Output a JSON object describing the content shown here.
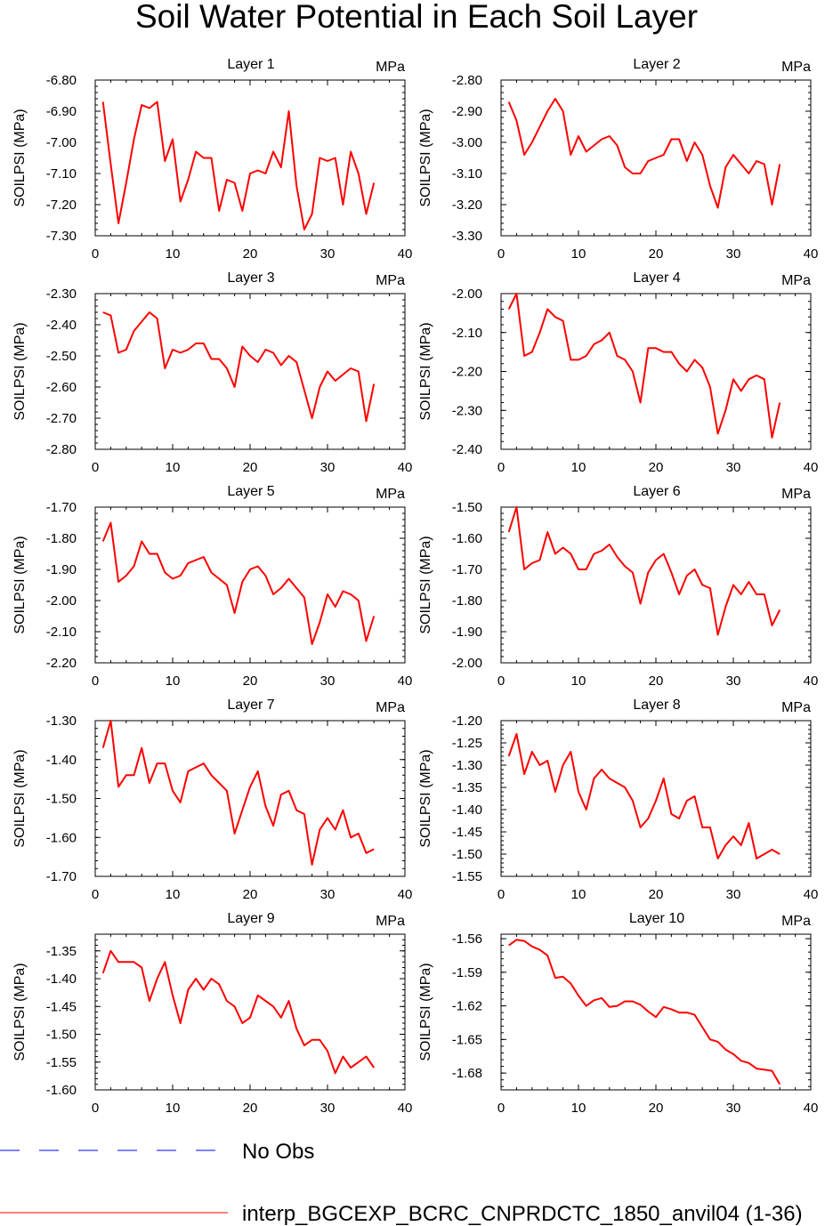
{
  "title": "Soil Water Potential in Each Soil Layer",
  "colors": {
    "model": "#ff0000",
    "obs": "#0000ff",
    "axis": "#000000"
  },
  "legend": [
    {
      "label": "No Obs",
      "style": "dashed",
      "color": "#0000ff"
    },
    {
      "label": "interp_BGCEXP_BCRC_CNPRDCTC_1850_anvil04 (1-36)",
      "style": "solid",
      "color": "#ff0000"
    }
  ],
  "chart_data": [
    {
      "type": "line",
      "title": "Layer 1",
      "units": "MPa",
      "ylabel": "SOILPSI  (MPa)",
      "xlim": [
        0,
        40
      ],
      "xticks": [
        "0",
        "10",
        "20",
        "30",
        "40"
      ],
      "ylim": [
        -7.3,
        -6.8
      ],
      "yticks": [
        "-6.80",
        "-6.90",
        "-7.00",
        "-7.10",
        "-7.20",
        "-7.30"
      ],
      "x": [
        1,
        2,
        3,
        4,
        5,
        6,
        7,
        8,
        9,
        10,
        11,
        12,
        13,
        14,
        15,
        16,
        17,
        18,
        19,
        20,
        21,
        22,
        23,
        24,
        25,
        26,
        27,
        28,
        29,
        30,
        31,
        32,
        33,
        34,
        35,
        36
      ],
      "series": [
        {
          "values": [
            -6.87,
            -7.07,
            -7.26,
            -7.13,
            -6.99,
            -6.88,
            -6.89,
            -6.87,
            -7.06,
            -6.99,
            -7.19,
            -7.12,
            -7.03,
            -7.05,
            -7.05,
            -7.22,
            -7.12,
            -7.13,
            -7.22,
            -7.1,
            -7.09,
            -7.1,
            -7.03,
            -7.08,
            -6.9,
            -7.14,
            -7.28,
            -7.23,
            -7.05,
            -7.06,
            -7.05,
            -7.2,
            -7.03,
            -7.1,
            -7.23,
            -7.13
          ]
        }
      ]
    },
    {
      "type": "line",
      "title": "Layer 2",
      "units": "MPa",
      "ylabel": "SOILPSI  (MPa)",
      "xlim": [
        0,
        40
      ],
      "xticks": [
        "0",
        "10",
        "20",
        "30",
        "40"
      ],
      "ylim": [
        -3.3,
        -2.8
      ],
      "yticks": [
        "-2.80",
        "-2.90",
        "-3.00",
        "-3.10",
        "-3.20",
        "-3.30"
      ],
      "x": [
        1,
        2,
        3,
        4,
        5,
        6,
        7,
        8,
        9,
        10,
        11,
        12,
        13,
        14,
        15,
        16,
        17,
        18,
        19,
        20,
        21,
        22,
        23,
        24,
        25,
        26,
        27,
        28,
        29,
        30,
        31,
        32,
        33,
        34,
        35,
        36
      ],
      "series": [
        {
          "values": [
            -2.87,
            -2.93,
            -3.04,
            -3.0,
            -2.95,
            -2.9,
            -2.86,
            -2.9,
            -3.04,
            -2.98,
            -3.03,
            -3.01,
            -2.99,
            -2.98,
            -3.01,
            -3.08,
            -3.1,
            -3.1,
            -3.06,
            -3.05,
            -3.04,
            -2.99,
            -2.99,
            -3.06,
            -3.0,
            -3.04,
            -3.14,
            -3.21,
            -3.08,
            -3.04,
            -3.07,
            -3.1,
            -3.06,
            -3.07,
            -3.2,
            -3.07
          ]
        }
      ]
    },
    {
      "type": "line",
      "title": "Layer 3",
      "units": "MPa",
      "ylabel": "SOILPSI  (MPa)",
      "xlim": [
        0,
        40
      ],
      "xticks": [
        "0",
        "10",
        "20",
        "30",
        "40"
      ],
      "ylim": [
        -2.8,
        -2.3
      ],
      "yticks": [
        "-2.30",
        "-2.40",
        "-2.50",
        "-2.60",
        "-2.70",
        "-2.80"
      ],
      "x": [
        1,
        2,
        3,
        4,
        5,
        6,
        7,
        8,
        9,
        10,
        11,
        12,
        13,
        14,
        15,
        16,
        17,
        18,
        19,
        20,
        21,
        22,
        23,
        24,
        25,
        26,
        27,
        28,
        29,
        30,
        31,
        32,
        33,
        34,
        35,
        36
      ],
      "series": [
        {
          "values": [
            -2.36,
            -2.37,
            -2.49,
            -2.48,
            -2.42,
            -2.39,
            -2.36,
            -2.38,
            -2.54,
            -2.48,
            -2.49,
            -2.48,
            -2.46,
            -2.46,
            -2.51,
            -2.51,
            -2.54,
            -2.6,
            -2.47,
            -2.5,
            -2.52,
            -2.48,
            -2.49,
            -2.53,
            -2.5,
            -2.52,
            -2.61,
            -2.7,
            -2.6,
            -2.55,
            -2.58,
            -2.56,
            -2.54,
            -2.55,
            -2.71,
            -2.59
          ]
        }
      ]
    },
    {
      "type": "line",
      "title": "Layer 4",
      "units": "MPa",
      "ylabel": "SOILPSI  (MPa)",
      "xlim": [
        0,
        40
      ],
      "xticks": [
        "0",
        "10",
        "20",
        "30",
        "40"
      ],
      "ylim": [
        -2.4,
        -2.0
      ],
      "yticks": [
        "-2.00",
        "-2.10",
        "-2.20",
        "-2.30",
        "-2.40"
      ],
      "x": [
        1,
        2,
        3,
        4,
        5,
        6,
        7,
        8,
        9,
        10,
        11,
        12,
        13,
        14,
        15,
        16,
        17,
        18,
        19,
        20,
        21,
        22,
        23,
        24,
        25,
        26,
        27,
        28,
        29,
        30,
        31,
        32,
        33,
        34,
        35,
        36
      ],
      "series": [
        {
          "values": [
            -2.04,
            -2.0,
            -2.16,
            -2.15,
            -2.1,
            -2.04,
            -2.06,
            -2.07,
            -2.17,
            -2.17,
            -2.16,
            -2.13,
            -2.12,
            -2.1,
            -2.16,
            -2.17,
            -2.2,
            -2.28,
            -2.14,
            -2.14,
            -2.15,
            -2.15,
            -2.18,
            -2.2,
            -2.17,
            -2.19,
            -2.24,
            -2.36,
            -2.3,
            -2.22,
            -2.25,
            -2.22,
            -2.21,
            -2.22,
            -2.37,
            -2.28
          ]
        }
      ]
    },
    {
      "type": "line",
      "title": "Layer 5",
      "units": "MPa",
      "ylabel": "SOILPSI  (MPa)",
      "xlim": [
        0,
        40
      ],
      "xticks": [
        "0",
        "10",
        "20",
        "30",
        "40"
      ],
      "ylim": [
        -2.2,
        -1.7
      ],
      "yticks": [
        "-1.70",
        "-1.80",
        "-1.90",
        "-2.00",
        "-2.10",
        "-2.20"
      ],
      "x": [
        1,
        2,
        3,
        4,
        5,
        6,
        7,
        8,
        9,
        10,
        11,
        12,
        13,
        14,
        15,
        16,
        17,
        18,
        19,
        20,
        21,
        22,
        23,
        24,
        25,
        26,
        27,
        28,
        29,
        30,
        31,
        32,
        33,
        34,
        35,
        36
      ],
      "series": [
        {
          "values": [
            -1.81,
            -1.75,
            -1.94,
            -1.92,
            -1.89,
            -1.81,
            -1.85,
            -1.85,
            -1.91,
            -1.93,
            -1.92,
            -1.88,
            -1.87,
            -1.86,
            -1.91,
            -1.93,
            -1.95,
            -2.04,
            -1.94,
            -1.9,
            -1.89,
            -1.92,
            -1.98,
            -1.96,
            -1.93,
            -1.96,
            -1.99,
            -2.14,
            -2.07,
            -1.98,
            -2.02,
            -1.97,
            -1.98,
            -2.0,
            -2.13,
            -2.05
          ]
        }
      ]
    },
    {
      "type": "line",
      "title": "Layer 6",
      "units": "MPa",
      "ylabel": "SOILPSI  (MPa)",
      "xlim": [
        0,
        40
      ],
      "xticks": [
        "0",
        "10",
        "20",
        "30",
        "40"
      ],
      "ylim": [
        -2.0,
        -1.5
      ],
      "yticks": [
        "-1.50",
        "-1.60",
        "-1.70",
        "-1.80",
        "-1.90",
        "-2.00"
      ],
      "x": [
        1,
        2,
        3,
        4,
        5,
        6,
        7,
        8,
        9,
        10,
        11,
        12,
        13,
        14,
        15,
        16,
        17,
        18,
        19,
        20,
        21,
        22,
        23,
        24,
        25,
        26,
        27,
        28,
        29,
        30,
        31,
        32,
        33,
        34,
        35,
        36
      ],
      "series": [
        {
          "values": [
            -1.58,
            -1.5,
            -1.7,
            -1.68,
            -1.67,
            -1.58,
            -1.65,
            -1.63,
            -1.65,
            -1.7,
            -1.7,
            -1.65,
            -1.64,
            -1.62,
            -1.66,
            -1.69,
            -1.71,
            -1.81,
            -1.71,
            -1.67,
            -1.65,
            -1.71,
            -1.78,
            -1.72,
            -1.7,
            -1.75,
            -1.76,
            -1.91,
            -1.82,
            -1.75,
            -1.78,
            -1.74,
            -1.78,
            -1.78,
            -1.88,
            -1.83
          ]
        }
      ]
    },
    {
      "type": "line",
      "title": "Layer 7",
      "units": "MPa",
      "ylabel": "SOILPSI  (MPa)",
      "xlim": [
        0,
        40
      ],
      "xticks": [
        "0",
        "10",
        "20",
        "30",
        "40"
      ],
      "ylim": [
        -1.7,
        -1.3
      ],
      "yticks": [
        "-1.30",
        "-1.40",
        "-1.50",
        "-1.60",
        "-1.70"
      ],
      "x": [
        1,
        2,
        3,
        4,
        5,
        6,
        7,
        8,
        9,
        10,
        11,
        12,
        13,
        14,
        15,
        16,
        17,
        18,
        19,
        20,
        21,
        22,
        23,
        24,
        25,
        26,
        27,
        28,
        29,
        30,
        31,
        32,
        33,
        34,
        35,
        36
      ],
      "series": [
        {
          "values": [
            -1.37,
            -1.3,
            -1.47,
            -1.44,
            -1.44,
            -1.37,
            -1.46,
            -1.41,
            -1.41,
            -1.48,
            -1.51,
            -1.43,
            -1.42,
            -1.41,
            -1.44,
            -1.46,
            -1.48,
            -1.59,
            -1.53,
            -1.47,
            -1.43,
            -1.52,
            -1.57,
            -1.49,
            -1.48,
            -1.53,
            -1.54,
            -1.67,
            -1.58,
            -1.55,
            -1.58,
            -1.53,
            -1.6,
            -1.59,
            -1.64,
            -1.63
          ]
        }
      ]
    },
    {
      "type": "line",
      "title": "Layer 8",
      "units": "MPa",
      "ylabel": "SOILPSI  (MPa)",
      "xlim": [
        0,
        40
      ],
      "xticks": [
        "0",
        "10",
        "20",
        "30",
        "40"
      ],
      "ylim": [
        -1.55,
        -1.2
      ],
      "yticks": [
        "-1.20",
        "-1.25",
        "-1.30",
        "-1.35",
        "-1.40",
        "-1.45",
        "-1.50",
        "-1.55"
      ],
      "x": [
        1,
        2,
        3,
        4,
        5,
        6,
        7,
        8,
        9,
        10,
        11,
        12,
        13,
        14,
        15,
        16,
        17,
        18,
        19,
        20,
        21,
        22,
        23,
        24,
        25,
        26,
        27,
        28,
        29,
        30,
        31,
        32,
        33,
        34,
        35,
        36
      ],
      "series": [
        {
          "values": [
            -1.28,
            -1.23,
            -1.32,
            -1.27,
            -1.3,
            -1.29,
            -1.36,
            -1.3,
            -1.27,
            -1.36,
            -1.4,
            -1.33,
            -1.31,
            -1.33,
            -1.34,
            -1.35,
            -1.38,
            -1.44,
            -1.42,
            -1.38,
            -1.33,
            -1.41,
            -1.42,
            -1.38,
            -1.37,
            -1.44,
            -1.44,
            -1.51,
            -1.48,
            -1.46,
            -1.48,
            -1.43,
            -1.51,
            -1.5,
            -1.49,
            -1.5
          ]
        }
      ]
    },
    {
      "type": "line",
      "title": "Layer 9",
      "units": "MPa",
      "ylabel": "SOILPSI  (MPa)",
      "xlim": [
        0,
        40
      ],
      "xticks": [
        "0",
        "10",
        "20",
        "30",
        "40"
      ],
      "ylim": [
        -1.6,
        -1.32
      ],
      "yticks": [
        "-1.35",
        "-1.40",
        "-1.45",
        "-1.50",
        "-1.55",
        "-1.60"
      ],
      "x": [
        1,
        2,
        3,
        4,
        5,
        6,
        7,
        8,
        9,
        10,
        11,
        12,
        13,
        14,
        15,
        16,
        17,
        18,
        19,
        20,
        21,
        22,
        23,
        24,
        25,
        26,
        27,
        28,
        29,
        30,
        31,
        32,
        33,
        34,
        35,
        36
      ],
      "series": [
        {
          "values": [
            -1.39,
            -1.35,
            -1.37,
            -1.37,
            -1.37,
            -1.38,
            -1.44,
            -1.4,
            -1.37,
            -1.43,
            -1.48,
            -1.42,
            -1.4,
            -1.42,
            -1.4,
            -1.41,
            -1.44,
            -1.45,
            -1.48,
            -1.47,
            -1.43,
            -1.44,
            -1.45,
            -1.47,
            -1.44,
            -1.49,
            -1.52,
            -1.51,
            -1.51,
            -1.53,
            -1.57,
            -1.54,
            -1.56,
            -1.55,
            -1.54,
            -1.56
          ]
        }
      ]
    },
    {
      "type": "line",
      "title": "Layer 10",
      "units": "MPa",
      "ylabel": "SOILPSI  (MPa)",
      "xlim": [
        0,
        40
      ],
      "xticks": [
        "0",
        "10",
        "20",
        "30",
        "40"
      ],
      "ylim": [
        -1.695,
        -1.556
      ],
      "yticks": [
        "-1.56",
        "-1.59",
        "-1.62",
        "-1.65",
        "-1.68"
      ],
      "x": [
        1,
        2,
        3,
        4,
        5,
        6,
        7,
        8,
        9,
        10,
        11,
        12,
        13,
        14,
        15,
        16,
        17,
        18,
        19,
        20,
        21,
        22,
        23,
        24,
        25,
        26,
        27,
        28,
        29,
        30,
        31,
        32,
        33,
        34,
        35,
        36
      ],
      "series": [
        {
          "values": [
            -1.566,
            -1.561,
            -1.562,
            -1.567,
            -1.57,
            -1.575,
            -1.595,
            -1.594,
            -1.6,
            -1.611,
            -1.62,
            -1.615,
            -1.613,
            -1.621,
            -1.62,
            -1.616,
            -1.616,
            -1.619,
            -1.625,
            -1.63,
            -1.621,
            -1.623,
            -1.626,
            -1.626,
            -1.628,
            -1.639,
            -1.65,
            -1.652,
            -1.659,
            -1.663,
            -1.669,
            -1.671,
            -1.676,
            -1.677,
            -1.678,
            -1.69
          ]
        }
      ]
    }
  ]
}
